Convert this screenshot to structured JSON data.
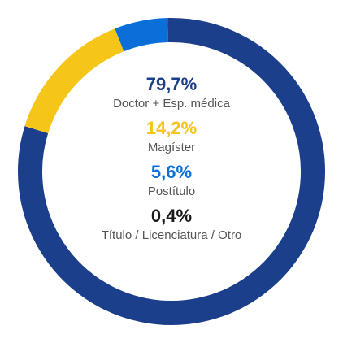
{
  "chart_data": {
    "type": "pie",
    "title": "",
    "slices": [
      {
        "label": "Doctor + Esp. médica",
        "value": 79.7,
        "display": "79,7%",
        "color": "#1c3f8c"
      },
      {
        "label": "Magíster",
        "value": 14.2,
        "display": "14,2%",
        "color": "#f5c518"
      },
      {
        "label": "Postítulo",
        "value": 5.6,
        "display": "5,6%",
        "color": "#0a6fd8"
      },
      {
        "label": "Título / Licenciatura / Otro",
        "value": 0.4,
        "display": "0,4%",
        "color": "#1c3f8c"
      }
    ],
    "label_colors": [
      "#1c3f8c",
      "#f5c518",
      "#0a6fd8",
      "#1a1a1a"
    ],
    "legend": "center"
  }
}
